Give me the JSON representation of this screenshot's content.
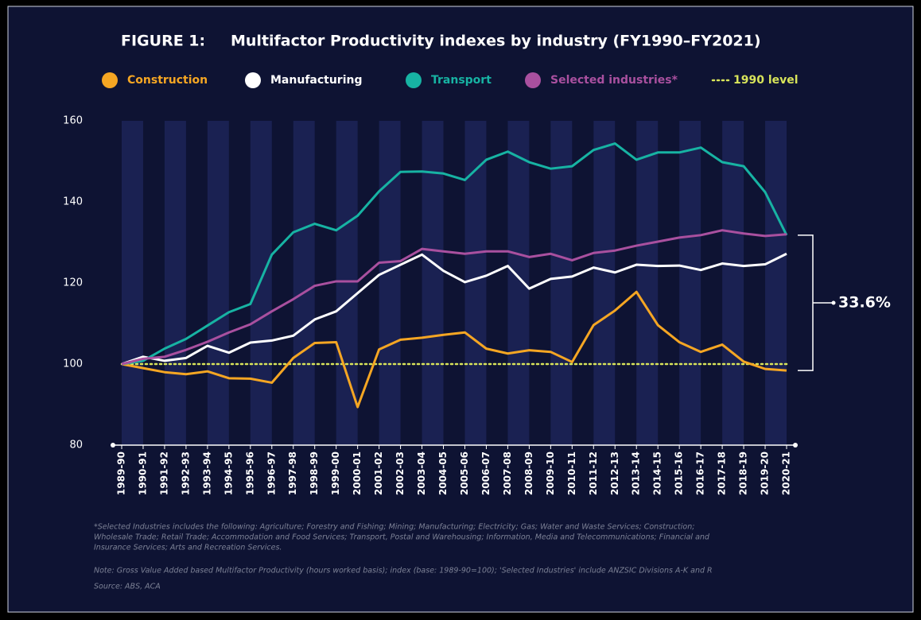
{
  "chart_data": {
    "type": "line",
    "title_prefix": "FIGURE 1:",
    "title": "Multifactor Productivity indexes by industry (FY1990–FY2021)",
    "categories": [
      "1989-90",
      "1990-91",
      "1991-92",
      "1992-93",
      "1993-94",
      "1994-95",
      "1995-96",
      "1996-97",
      "1997-98",
      "1998-99",
      "1999-00",
      "2000-01",
      "2001-02",
      "2002-03",
      "2003-04",
      "2004-05",
      "2005-06",
      "2006-07",
      "2007-08",
      "2008-09",
      "2009-10",
      "2010-11",
      "2011-12",
      "2012-13",
      "2013-14",
      "2014-15",
      "2015-16",
      "2016-17",
      "2017-18",
      "2018-19",
      "2019-20",
      "2020-21"
    ],
    "series": [
      {
        "name": "Construction",
        "color": "#f5a623",
        "values": [
          100,
          99,
          98,
          97.5,
          98.2,
          96.5,
          96.4,
          95.4,
          101.5,
          105.2,
          105.4,
          89.4,
          103.6,
          106,
          106.5,
          107.2,
          107.8,
          103.8,
          102.6,
          103.4,
          103,
          100.5,
          109.6,
          113.2,
          117.8,
          109.6,
          105.4,
          103,
          104.8,
          100.6,
          98.8,
          98.4
        ]
      },
      {
        "name": "Manufacturing",
        "color": "#ffffff",
        "values": [
          100,
          101.8,
          100.8,
          101.5,
          104.5,
          102.8,
          105.3,
          105.8,
          107,
          111,
          113,
          117.5,
          122,
          124.5,
          127,
          123,
          120.2,
          121.8,
          124.2,
          118.6,
          121,
          121.6,
          123.8,
          122.6,
          124.5,
          124.2,
          124.3,
          123.2,
          124.8,
          124.2,
          124.6,
          127.2
        ]
      },
      {
        "name": "Transport",
        "color": "#17b3a3",
        "values": [
          100,
          100.8,
          103.8,
          106.2,
          109.5,
          112.8,
          114.8,
          127,
          132.5,
          134.6,
          133,
          136.6,
          142.6,
          147.4,
          147.5,
          147,
          145.4,
          150.4,
          152.4,
          149.8,
          148.2,
          148.8,
          152.8,
          154.4,
          150.4,
          152.2,
          152.2,
          153.4,
          149.8,
          148.8,
          142.4,
          131.8
        ]
      },
      {
        "name": "Selected industries*",
        "color": "#a9509f",
        "values": [
          100,
          101.3,
          101.8,
          103.5,
          105.5,
          107.8,
          109.8,
          113,
          116,
          119.3,
          120.4,
          120.4,
          125,
          125.4,
          128.4,
          127.8,
          127.2,
          127.8,
          127.8,
          126.4,
          127.2,
          125.6,
          127.4,
          128,
          129.2,
          130.2,
          131.2,
          131.8,
          133,
          132.2,
          131.6,
          132
        ]
      }
    ],
    "reference_line": {
      "name": "1990 level",
      "value": 100,
      "color": "#d8e45a"
    },
    "annotation": "33.6%",
    "ylim": [
      80,
      160
    ],
    "yticks": [
      80,
      100,
      120,
      140,
      160
    ],
    "grid": false,
    "footnote_lines": [
      "*Selected Industries includes the following: Agriculture; Forestry and Fishing; Mining; Manufacturing; Electricity; Gas; Water and Waste Services; Construction;",
      "Wholesale Trade; Retail Trade; Accommodation and Food Services; Transport, Postal and Warehousing; Information, Media and Telecommunications; Financial and",
      "Insurance Services; Arts and Recreation Services."
    ],
    "note": "Note: Gross Value Added based Multifactor Productivity (hours worked basis); index (base: 1989-90=100); 'Selected Industries' include ANZSIC Divisions A-K and R",
    "source": "Source: ABS, ACA"
  }
}
